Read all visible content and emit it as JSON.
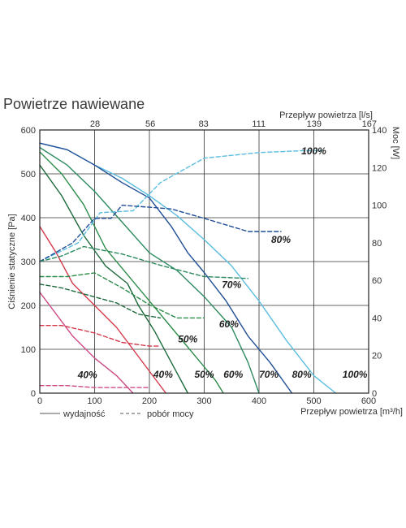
{
  "page": {
    "title": "Powietrze nawiewane"
  },
  "chart_data": {
    "type": "line",
    "title": "Powietrze nawiewane",
    "xlabel": "Przepływ powietrza [m³/h]",
    "x2label": "Przepływ powietrza [l/s]",
    "ylabel": "Ciśnienie statyczne [Pa]",
    "y2label": "Moc [W]",
    "xlim": [
      0,
      600
    ],
    "ylim": [
      0,
      600
    ],
    "y2lim": [
      0,
      140
    ],
    "grid": true,
    "x_ticks": [
      0,
      100,
      200,
      300,
      400,
      500,
      600
    ],
    "y_ticks": [
      0,
      100,
      200,
      300,
      400,
      500,
      600
    ],
    "y2_ticks": [
      0,
      20,
      40,
      60,
      80,
      100,
      120,
      140
    ],
    "x2_ticks": [
      {
        "label": "28",
        "x": 100.8
      },
      {
        "label": "56",
        "x": 201.6
      },
      {
        "label": "83",
        "x": 298.8
      },
      {
        "label": "111",
        "x": 399.6
      },
      {
        "label": "139",
        "x": 500.4
      },
      {
        "label": "167",
        "x": 601.2
      }
    ],
    "legend": [
      {
        "label": "wydajność",
        "style": "solid"
      },
      {
        "label": "pobór mocy",
        "style": "dashed"
      }
    ],
    "series": [
      {
        "kind": "pressure",
        "color": "#5bbde0",
        "label": "100%",
        "label_at": [
          575,
          35
        ],
        "points": [
          [
            0,
            570
          ],
          [
            50,
            555
          ],
          [
            100,
            520
          ],
          [
            150,
            490
          ],
          [
            200,
            450
          ],
          [
            250,
            405
          ],
          [
            300,
            350
          ],
          [
            350,
            290
          ],
          [
            400,
            210
          ],
          [
            450,
            120
          ],
          [
            500,
            40
          ],
          [
            540,
            0
          ]
        ]
      },
      {
        "kind": "pressure",
        "color": "#1f4e96",
        "label": "80%",
        "label_at": [
          478,
          35
        ],
        "points": [
          [
            0,
            570
          ],
          [
            50,
            555
          ],
          [
            100,
            520
          ],
          [
            150,
            480
          ],
          [
            200,
            445
          ],
          [
            240,
            380
          ],
          [
            270,
            320
          ],
          [
            300,
            275
          ],
          [
            340,
            210
          ],
          [
            380,
            130
          ],
          [
            420,
            70
          ],
          [
            460,
            0
          ]
        ]
      },
      {
        "kind": "pressure",
        "color": "#2c8a5e",
        "label": "70%",
        "label_at": [
          418,
          35
        ],
        "points": [
          [
            0,
            560
          ],
          [
            50,
            520
          ],
          [
            100,
            460
          ],
          [
            150,
            390
          ],
          [
            200,
            320
          ],
          [
            250,
            280
          ],
          [
            300,
            220
          ],
          [
            350,
            150
          ],
          [
            380,
            70
          ],
          [
            400,
            0
          ]
        ]
      },
      {
        "kind": "pressure",
        "color": "#2e8c4a",
        "label": "60%",
        "label_at": [
          353,
          35
        ],
        "points": [
          [
            0,
            550
          ],
          [
            40,
            500
          ],
          [
            80,
            430
          ],
          [
            120,
            330
          ],
          [
            160,
            270
          ],
          [
            200,
            210
          ],
          [
            240,
            150
          ],
          [
            280,
            90
          ],
          [
            320,
            30
          ],
          [
            335,
            0
          ]
        ]
      },
      {
        "kind": "pressure",
        "color": "#1e6a3c",
        "label": "50%",
        "label_at": [
          300,
          35
        ],
        "points": [
          [
            0,
            520
          ],
          [
            40,
            450
          ],
          [
            80,
            360
          ],
          [
            120,
            290
          ],
          [
            160,
            250
          ],
          [
            180,
            200
          ],
          [
            210,
            140
          ],
          [
            240,
            70
          ],
          [
            270,
            0
          ]
        ]
      },
      {
        "kind": "pressure",
        "color": "#d43a4c",
        "label": "40%",
        "label_at": [
          225,
          35
        ],
        "points": [
          [
            0,
            380
          ],
          [
            30,
            320
          ],
          [
            60,
            250
          ],
          [
            100,
            200
          ],
          [
            140,
            150
          ],
          [
            170,
            100
          ],
          [
            200,
            50
          ],
          [
            230,
            0
          ]
        ]
      },
      {
        "kind": "pressure",
        "color": "#cc4c86",
        "label": "",
        "label_at": null,
        "points": [
          [
            0,
            230
          ],
          [
            30,
            180
          ],
          [
            60,
            130
          ],
          [
            100,
            80
          ],
          [
            140,
            40
          ],
          [
            170,
            0
          ]
        ]
      },
      {
        "kind": "power",
        "color": "#5bbde0",
        "label": "100%",
        "label_at": [
          500,
          127
        ],
        "points": [
          [
            0,
            70
          ],
          [
            70,
            80
          ],
          [
            110,
            96
          ],
          [
            170,
            97
          ],
          [
            220,
            112
          ],
          [
            300,
            125
          ],
          [
            400,
            128
          ],
          [
            480,
            129
          ],
          [
            515,
            129
          ]
        ]
      },
      {
        "kind": "power",
        "color": "#1f4e96",
        "label": "80%",
        "label_at": [
          440,
          80
        ],
        "points": [
          [
            0,
            70
          ],
          [
            60,
            80
          ],
          [
            100,
            93
          ],
          [
            130,
            93
          ],
          [
            150,
            100
          ],
          [
            240,
            98
          ],
          [
            300,
            93
          ],
          [
            380,
            86
          ],
          [
            440,
            86
          ]
        ]
      },
      {
        "kind": "power",
        "color": "#2c8a5e",
        "label": "70%",
        "label_at": [
          350,
          56
        ],
        "points": [
          [
            0,
            70
          ],
          [
            40,
            73
          ],
          [
            80,
            78
          ],
          [
            150,
            74
          ],
          [
            220,
            68
          ],
          [
            300,
            62
          ],
          [
            380,
            61
          ]
        ]
      },
      {
        "kind": "power",
        "color": "#2e8c4a",
        "label": "60%",
        "label_at": [
          345,
          35
        ],
        "points": [
          [
            0,
            62
          ],
          [
            50,
            62
          ],
          [
            100,
            64
          ],
          [
            150,
            56
          ],
          [
            200,
            47
          ],
          [
            250,
            40
          ],
          [
            300,
            40
          ]
        ]
      },
      {
        "kind": "power",
        "color": "#1e6a3c",
        "label": "50%",
        "label_at": [
          270,
          27
        ],
        "points": [
          [
            0,
            58
          ],
          [
            40,
            56
          ],
          [
            90,
            52
          ],
          [
            140,
            48
          ],
          [
            180,
            42
          ],
          [
            220,
            40
          ]
        ]
      },
      {
        "kind": "power",
        "color": "#d43a4c",
        "label": "",
        "label_at": null,
        "points": [
          [
            0,
            36
          ],
          [
            40,
            36
          ],
          [
            100,
            32
          ],
          [
            150,
            27
          ],
          [
            200,
            25
          ],
          [
            220,
            25
          ]
        ]
      },
      {
        "kind": "power",
        "color": "#cc4c86",
        "label": "40%",
        "label_at": [
          87,
          8
        ],
        "points": [
          [
            0,
            4
          ],
          [
            50,
            4
          ],
          [
            100,
            3
          ],
          [
            140,
            3
          ],
          [
            200,
            3
          ]
        ]
      }
    ]
  }
}
